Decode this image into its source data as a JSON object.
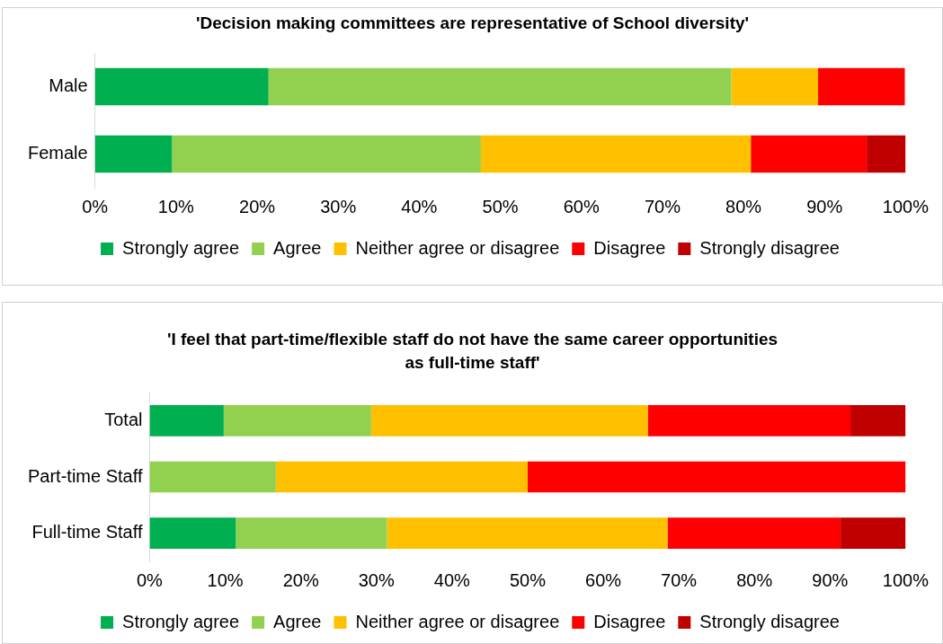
{
  "chart_data": [
    {
      "type": "bar",
      "title": "'Decision making committees are representative of School diversity'",
      "categories": [
        "Male",
        "Female"
      ],
      "orientation": "horizontal",
      "stacked": true,
      "xlim": [
        0,
        100
      ],
      "xticks": [
        {
          "value": 0,
          "label": "0%"
        },
        {
          "value": 10,
          "label": "10%"
        },
        {
          "value": 20,
          "label": "20%"
        },
        {
          "value": 30,
          "label": "30%"
        },
        {
          "value": 40,
          "label": "40%"
        },
        {
          "value": 50,
          "label": "50%"
        },
        {
          "value": 60,
          "label": "60%"
        },
        {
          "value": 70,
          "label": "70%"
        },
        {
          "value": 80,
          "label": "80%"
        },
        {
          "value": 90,
          "label": "90%"
        },
        {
          "value": 100,
          "label": "100%"
        }
      ],
      "grid": false,
      "legend": "bottom",
      "series": [
        {
          "name": "Strongly agree",
          "color": "#00b050",
          "values": [
            21.4,
            9.5
          ]
        },
        {
          "name": "Agree",
          "color": "#92d050",
          "values": [
            57.1,
            38.1
          ]
        },
        {
          "name": "Neither agree or disagree",
          "color": "#ffc000",
          "values": [
            10.7,
            33.3
          ]
        },
        {
          "name": "Disagree",
          "color": "#ff0000",
          "values": [
            10.7,
            14.3
          ]
        },
        {
          "name": "Strongly disagree",
          "color": "#c00000",
          "values": [
            0,
            4.8
          ]
        }
      ]
    },
    {
      "type": "bar",
      "title": "'I feel that part-time/flexible staff do not have the same career opportunities as full-time staff'",
      "categories": [
        "Total",
        "Part-time Staff",
        "Full-time Staff"
      ],
      "orientation": "horizontal",
      "stacked": true,
      "xlim": [
        0,
        100
      ],
      "xticks": [
        {
          "value": 0,
          "label": "0%"
        },
        {
          "value": 10,
          "label": "10%"
        },
        {
          "value": 20,
          "label": "20%"
        },
        {
          "value": 30,
          "label": "30%"
        },
        {
          "value": 40,
          "label": "40%"
        },
        {
          "value": 50,
          "label": "50%"
        },
        {
          "value": 60,
          "label": "60%"
        },
        {
          "value": 70,
          "label": "70%"
        },
        {
          "value": 80,
          "label": "80%"
        },
        {
          "value": 90,
          "label": "90%"
        },
        {
          "value": 100,
          "label": "100%"
        }
      ],
      "grid": false,
      "legend": "bottom",
      "series": [
        {
          "name": "Strongly agree",
          "color": "#00b050",
          "values": [
            9.8,
            0,
            11.4
          ]
        },
        {
          "name": "Agree",
          "color": "#92d050",
          "values": [
            19.5,
            16.7,
            20
          ]
        },
        {
          "name": "Neither agree or disagree",
          "color": "#ffc000",
          "values": [
            36.6,
            33.3,
            37.1
          ]
        },
        {
          "name": "Disagree",
          "color": "#ff0000",
          "values": [
            26.8,
            50,
            22.9
          ]
        },
        {
          "name": "Strongly disagree",
          "color": "#c00000",
          "values": [
            7.3,
            0,
            8.6
          ]
        }
      ]
    }
  ]
}
